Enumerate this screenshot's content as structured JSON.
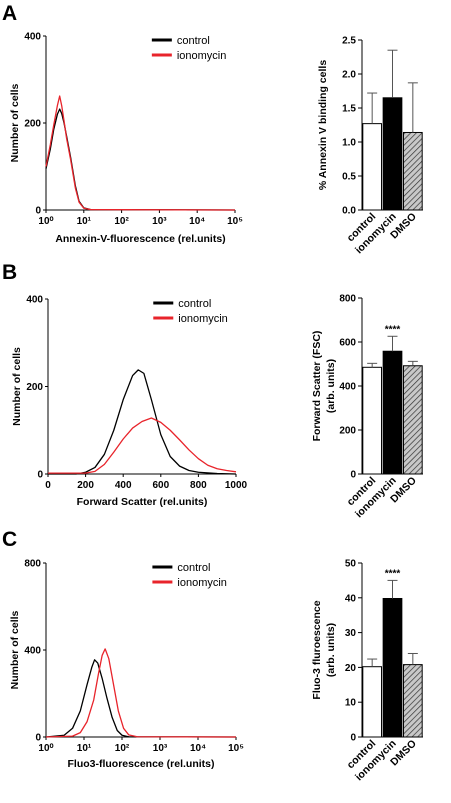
{
  "panel_labels": [
    "A",
    "B",
    "C"
  ],
  "chart_data": [
    {
      "type": "line",
      "panel": "A",
      "xlabel": "Annexin-V-fluorescence (rel.units)",
      "ylabel": "Number of cells",
      "x_scale": "log",
      "xlim": [
        1,
        100000
      ],
      "ylim": [
        0,
        400
      ],
      "x_ticks": [
        1,
        10,
        100,
        1000,
        10000,
        100000
      ],
      "x_tick_labels": [
        "10⁰",
        "10¹",
        "10²",
        "10³",
        "10⁴",
        "10⁵"
      ],
      "y_ticks": [
        0,
        200,
        400
      ],
      "y_tick_labels": [
        "0",
        "200",
        "400"
      ],
      "legend": "top-right",
      "series": [
        {
          "name": "control",
          "color": "#000000",
          "points": [
            [
              1,
              95
            ],
            [
              1.3,
              140
            ],
            [
              1.6,
              185
            ],
            [
              2,
              220
            ],
            [
              2.3,
              232
            ],
            [
              2.6,
              222
            ],
            [
              3,
              200
            ],
            [
              3.5,
              170
            ],
            [
              4.5,
              120
            ],
            [
              6,
              55
            ],
            [
              7.5,
              20
            ],
            [
              10,
              5
            ],
            [
              15,
              1
            ],
            [
              100000,
              0
            ]
          ]
        },
        {
          "name": "ionomycin",
          "color": "#e8242b",
          "points": [
            [
              1,
              100
            ],
            [
              1.3,
              150
            ],
            [
              1.6,
              195
            ],
            [
              2,
              240
            ],
            [
              2.3,
              262
            ],
            [
              2.6,
              240
            ],
            [
              3,
              205
            ],
            [
              3.5,
              165
            ],
            [
              4.5,
              115
            ],
            [
              6,
              50
            ],
            [
              7.5,
              18
            ],
            [
              10,
              4
            ],
            [
              15,
              1
            ],
            [
              100000,
              0
            ]
          ]
        }
      ]
    },
    {
      "type": "bar",
      "panel": "A",
      "categories": [
        "control",
        "ionomycin",
        "DMSO"
      ],
      "ylabel": "% Annexin V binding cells",
      "ylim": [
        0,
        2.5
      ],
      "y_ticks": [
        0,
        0.5,
        1.0,
        1.5,
        2.0,
        2.5
      ],
      "y_tick_labels": [
        "0.0",
        "0.5",
        "1.0",
        "1.5",
        "2.0",
        "2.5"
      ],
      "values": [
        1.27,
        1.65,
        1.14
      ],
      "errors": [
        0.45,
        0.7,
        0.73
      ],
      "fills": [
        "white",
        "black",
        "hatched"
      ],
      "significance": [
        "",
        "",
        ""
      ]
    },
    {
      "type": "line",
      "panel": "B",
      "xlabel": "Forward Scatter (rel.units)",
      "ylabel": "Number of cells",
      "x_scale": "linear",
      "xlim": [
        0,
        1000
      ],
      "ylim": [
        0,
        400
      ],
      "x_ticks": [
        0,
        200,
        400,
        600,
        800,
        1000
      ],
      "x_tick_labels": [
        "0",
        "200",
        "400",
        "600",
        "800",
        "1000"
      ],
      "y_ticks": [
        0,
        200,
        400
      ],
      "y_tick_labels": [
        "0",
        "200",
        "400"
      ],
      "legend": "top-right",
      "series": [
        {
          "name": "control",
          "color": "#000000",
          "points": [
            [
              0,
              0
            ],
            [
              150,
              0
            ],
            [
              200,
              4
            ],
            [
              250,
              15
            ],
            [
              300,
              45
            ],
            [
              350,
              100
            ],
            [
              400,
              170
            ],
            [
              450,
              225
            ],
            [
              480,
              238
            ],
            [
              510,
              230
            ],
            [
              550,
              170
            ],
            [
              600,
              90
            ],
            [
              650,
              40
            ],
            [
              700,
              18
            ],
            [
              750,
              8
            ],
            [
              800,
              4
            ],
            [
              900,
              1
            ],
            [
              1000,
              0
            ]
          ]
        },
        {
          "name": "ionomycin",
          "color": "#e8242b",
          "points": [
            [
              0,
              2
            ],
            [
              200,
              2
            ],
            [
              250,
              6
            ],
            [
              300,
              22
            ],
            [
              350,
              50
            ],
            [
              400,
              80
            ],
            [
              450,
              105
            ],
            [
              500,
              120
            ],
            [
              550,
              128
            ],
            [
              600,
              118
            ],
            [
              650,
              100
            ],
            [
              700,
              78
            ],
            [
              750,
              55
            ],
            [
              800,
              35
            ],
            [
              850,
              20
            ],
            [
              900,
              12
            ],
            [
              950,
              8
            ],
            [
              1000,
              5
            ]
          ]
        }
      ]
    },
    {
      "type": "bar",
      "panel": "B",
      "categories": [
        "control",
        "ionomycin",
        "DMSO"
      ],
      "ylabel": "Forward Scatter (FSC) (arb. units)",
      "ylim": [
        0,
        800
      ],
      "y_ticks": [
        0,
        200,
        400,
        600,
        800
      ],
      "y_tick_labels": [
        "0",
        "200",
        "400",
        "600",
        "800"
      ],
      "values": [
        485,
        558,
        492
      ],
      "errors": [
        18,
        68,
        20
      ],
      "fills": [
        "white",
        "black",
        "hatched"
      ],
      "significance": [
        "",
        "****",
        ""
      ]
    },
    {
      "type": "line",
      "panel": "C",
      "xlabel": "Fluo3-fluorescence (rel.units)",
      "ylabel": "Number of cells",
      "x_scale": "log",
      "xlim": [
        1,
        100000
      ],
      "ylim": [
        0,
        800
      ],
      "x_ticks": [
        1,
        10,
        100,
        1000,
        10000,
        100000
      ],
      "x_tick_labels": [
        "10⁰",
        "10¹",
        "10²",
        "10³",
        "10⁴",
        "10⁵"
      ],
      "y_ticks": [
        0,
        400,
        800
      ],
      "y_tick_labels": [
        "0",
        "400",
        "800"
      ],
      "legend": "top-right",
      "series": [
        {
          "name": "control",
          "color": "#000000",
          "points": [
            [
              1,
              0
            ],
            [
              3,
              8
            ],
            [
              5,
              40
            ],
            [
              8,
              120
            ],
            [
              12,
              240
            ],
            [
              16,
              320
            ],
            [
              19,
              355
            ],
            [
              23,
              340
            ],
            [
              30,
              270
            ],
            [
              40,
              180
            ],
            [
              55,
              90
            ],
            [
              75,
              30
            ],
            [
              100,
              8
            ],
            [
              150,
              1
            ],
            [
              100000,
              0
            ]
          ]
        },
        {
          "name": "ionomycin",
          "color": "#e8242b",
          "points": [
            [
              1,
              0
            ],
            [
              5,
              4
            ],
            [
              8,
              20
            ],
            [
              12,
              70
            ],
            [
              18,
              170
            ],
            [
              24,
              290
            ],
            [
              30,
              375
            ],
            [
              36,
              405
            ],
            [
              45,
              360
            ],
            [
              60,
              240
            ],
            [
              80,
              120
            ],
            [
              110,
              40
            ],
            [
              150,
              10
            ],
            [
              250,
              1
            ],
            [
              100000,
              0
            ]
          ]
        }
      ]
    },
    {
      "type": "bar",
      "panel": "C",
      "categories": [
        "control",
        "ionomycin",
        "DMSO"
      ],
      "ylabel": "Fluo-3 fluroescence (arb. units)",
      "ylim": [
        0,
        50
      ],
      "y_ticks": [
        0,
        10,
        20,
        30,
        40,
        50
      ],
      "y_tick_labels": [
        "0",
        "10",
        "20",
        "30",
        "40",
        "50"
      ],
      "values": [
        20.2,
        39.8,
        20.8
      ],
      "errors": [
        2.2,
        5.2,
        3.2
      ],
      "fills": [
        "white",
        "black",
        "hatched"
      ],
      "significance": [
        "",
        "****",
        ""
      ]
    }
  ]
}
